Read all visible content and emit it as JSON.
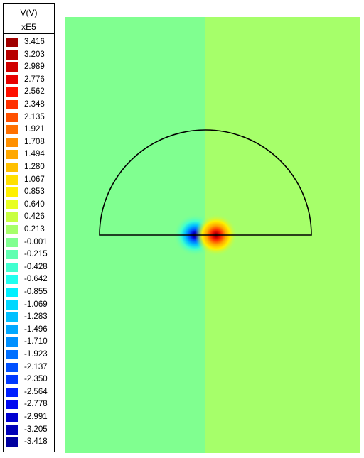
{
  "legend": {
    "title": "V(V)",
    "scale": "xE5",
    "entries": [
      {
        "label": "3.416",
        "color": "#a00000"
      },
      {
        "label": "3.203",
        "color": "#b80000"
      },
      {
        "label": "2.989",
        "color": "#d00000"
      },
      {
        "label": "2.776",
        "color": "#e80000"
      },
      {
        "label": "2.562",
        "color": "#ff1000"
      },
      {
        "label": "2.348",
        "color": "#ff3000"
      },
      {
        "label": "2.135",
        "color": "#ff5000"
      },
      {
        "label": "1.921",
        "color": "#ff7000"
      },
      {
        "label": "1.708",
        "color": "#ff9000"
      },
      {
        "label": "1.494",
        "color": "#ffa800"
      },
      {
        "label": "1.280",
        "color": "#ffc000"
      },
      {
        "label": "1.067",
        "color": "#ffe000"
      },
      {
        "label": "0.853",
        "color": "#fff000"
      },
      {
        "label": "0.640",
        "color": "#e8ff20"
      },
      {
        "label": "0.426",
        "color": "#c8ff40"
      },
      {
        "label": "0.213",
        "color": "#a6ff6a"
      },
      {
        "label": "-0.001",
        "color": "#80ff90"
      },
      {
        "label": "-0.215",
        "color": "#60ffb0"
      },
      {
        "label": "-0.428",
        "color": "#40ffcf"
      },
      {
        "label": "-0.642",
        "color": "#20ffef"
      },
      {
        "label": "-0.855",
        "color": "#00f0ff"
      },
      {
        "label": "-1.069",
        "color": "#00d8ff"
      },
      {
        "label": "-1.283",
        "color": "#00c0ff"
      },
      {
        "label": "-1.496",
        "color": "#00a8ff"
      },
      {
        "label": "-1.710",
        "color": "#0090ff"
      },
      {
        "label": "-1.923",
        "color": "#0070ff"
      },
      {
        "label": "-2.137",
        "color": "#0050ff"
      },
      {
        "label": "-2.350",
        "color": "#0038ff"
      },
      {
        "label": "-2.564",
        "color": "#0020ff"
      },
      {
        "label": "-2.778",
        "color": "#0008f0"
      },
      {
        "label": "-2.991",
        "color": "#0000d0"
      },
      {
        "label": "-3.205",
        "color": "#0000b8"
      },
      {
        "label": "-3.418",
        "color": "#0000a0"
      }
    ]
  },
  "chart_data": {
    "type": "heatmap",
    "title": "",
    "xlabel": "",
    "ylabel": "",
    "quantity": "V(V)",
    "scale_factor": "xE5",
    "value_range": [
      -3.418,
      3.416
    ],
    "regions": [
      {
        "side": "left",
        "approx_value": -0.001,
        "color": "#80ff90"
      },
      {
        "side": "right",
        "approx_value": 0.213,
        "color": "#a6ff6a"
      }
    ],
    "sources": [
      {
        "kind": "negative-pole",
        "peak_value": -3.418,
        "side": "left"
      },
      {
        "kind": "positive-pole",
        "peak_value": 3.416,
        "side": "right"
      }
    ],
    "outline": "semicircle"
  }
}
